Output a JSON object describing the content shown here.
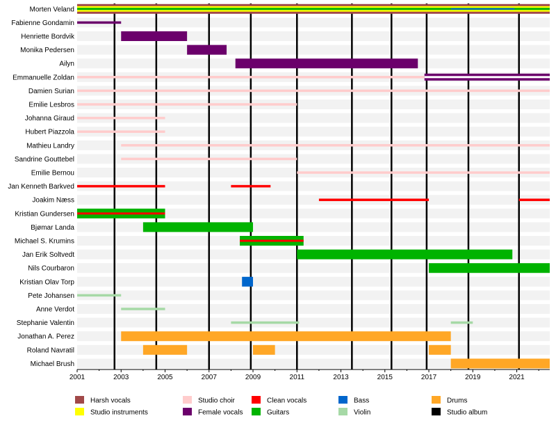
{
  "chart_data": {
    "type": "timeline",
    "title": "",
    "xlim": [
      2001,
      2022.5
    ],
    "x_ticks": [
      2001,
      2003,
      2005,
      2007,
      2009,
      2011,
      2013,
      2015,
      2017,
      2019,
      2021
    ],
    "album_years": [
      2002.7,
      2004.6,
      2007.0,
      2008.9,
      2011.0,
      2013.5,
      2015.3,
      2016.9,
      2018.8,
      2021.1
    ],
    "colors": {
      "harsh_vocals": "#a14949",
      "studio_instruments": "#ffff00",
      "studio_choir": "#ffcccc",
      "female_vocals": "#6b006b",
      "clean_vocals": "#ff0000",
      "guitars": "#00b300",
      "bass": "#0066cc",
      "violin": "#a6d9a6",
      "drums": "#ffa726",
      "studio_album": "#000000"
    },
    "legend": [
      {
        "key": "harsh_vocals",
        "label": "Harsh vocals"
      },
      {
        "key": "studio_instruments",
        "label": "Studio instruments"
      },
      {
        "key": "studio_choir",
        "label": "Studio choir"
      },
      {
        "key": "female_vocals",
        "label": "Female vocals"
      },
      {
        "key": "clean_vocals",
        "label": "Clean vocals"
      },
      {
        "key": "guitars",
        "label": "Guitars"
      },
      {
        "key": "bass",
        "label": "Bass"
      },
      {
        "key": "violin",
        "label": "Violin"
      },
      {
        "key": "drums",
        "label": "Drums"
      },
      {
        "key": "studio_album",
        "label": "Studio album"
      }
    ],
    "members": [
      {
        "name": "Morten Veland",
        "spans": [
          {
            "role": "harsh_vocals",
            "from": 2001,
            "to": 2022.5,
            "weight": "full"
          },
          {
            "role": "studio_instruments",
            "from": 2001,
            "to": 2022.5,
            "weight": "mid"
          },
          {
            "role": "guitars",
            "from": 2001,
            "to": 2022.5,
            "weight": "thin"
          },
          {
            "role": "bass",
            "from": 2018.0,
            "to": 2020.9,
            "weight": "hair"
          }
        ]
      },
      {
        "name": "Fabienne Gondamin",
        "spans": [
          {
            "role": "female_vocals",
            "from": 2001,
            "to": 2003.0,
            "weight": "line"
          }
        ]
      },
      {
        "name": "Henriette Bordvik",
        "spans": [
          {
            "role": "female_vocals",
            "from": 2003.0,
            "to": 2006.0,
            "weight": "full"
          }
        ]
      },
      {
        "name": "Monika Pedersen",
        "spans": [
          {
            "role": "female_vocals",
            "from": 2006.0,
            "to": 2007.8,
            "weight": "full"
          }
        ]
      },
      {
        "name": "Ailyn",
        "spans": [
          {
            "role": "female_vocals",
            "from": 2008.2,
            "to": 2016.5,
            "weight": "full"
          }
        ]
      },
      {
        "name": "Emmanuelle Zoldan",
        "spans": [
          {
            "role": "studio_choir",
            "from": 2001,
            "to": 2022.5,
            "weight": "line"
          },
          {
            "role": "female_vocals",
            "from": 2016.8,
            "to": 2022.5,
            "weight": "split"
          }
        ]
      },
      {
        "name": "Damien Surian",
        "spans": [
          {
            "role": "studio_choir",
            "from": 2001,
            "to": 2022.5,
            "weight": "line"
          }
        ]
      },
      {
        "name": "Emilie Lesbros",
        "spans": [
          {
            "role": "studio_choir",
            "from": 2001,
            "to": 2011.0,
            "weight": "line"
          }
        ]
      },
      {
        "name": "Johanna Giraud",
        "spans": [
          {
            "role": "studio_choir",
            "from": 2001,
            "to": 2005.0,
            "weight": "line"
          }
        ]
      },
      {
        "name": "Hubert Piazzola",
        "spans": [
          {
            "role": "studio_choir",
            "from": 2001,
            "to": 2005.0,
            "weight": "line"
          }
        ]
      },
      {
        "name": "Mathieu Landry",
        "spans": [
          {
            "role": "studio_choir",
            "from": 2003.0,
            "to": 2022.5,
            "weight": "line"
          }
        ]
      },
      {
        "name": "Sandrine Gouttebel",
        "spans": [
          {
            "role": "studio_choir",
            "from": 2003.0,
            "to": 2011.0,
            "weight": "line"
          }
        ]
      },
      {
        "name": "Emilie Bernou",
        "spans": [
          {
            "role": "studio_choir",
            "from": 2011.0,
            "to": 2022.5,
            "weight": "line"
          }
        ]
      },
      {
        "name": "Jan Kenneth Barkved",
        "spans": [
          {
            "role": "clean_vocals",
            "from": 2001,
            "to": 2005.0,
            "weight": "line"
          },
          {
            "role": "clean_vocals",
            "from": 2008.0,
            "to": 2009.8,
            "weight": "line"
          }
        ]
      },
      {
        "name": "Joakim Næss",
        "spans": [
          {
            "role": "clean_vocals",
            "from": 2012.0,
            "to": 2017.0,
            "weight": "line"
          },
          {
            "role": "clean_vocals",
            "from": 2021.1,
            "to": 2022.5,
            "weight": "line"
          }
        ]
      },
      {
        "name": "Kristian Gundersen",
        "spans": [
          {
            "role": "guitars",
            "from": 2001,
            "to": 2005.0,
            "weight": "full"
          },
          {
            "role": "clean_vocals",
            "from": 2001,
            "to": 2005.0,
            "weight": "center"
          }
        ]
      },
      {
        "name": "Bjømar Landa",
        "spans": [
          {
            "role": "guitars",
            "from": 2004.0,
            "to": 2009.0,
            "weight": "full"
          }
        ]
      },
      {
        "name": "Michael S. Krumins",
        "spans": [
          {
            "role": "guitars",
            "from": 2008.4,
            "to": 2011.3,
            "weight": "full"
          },
          {
            "role": "clean_vocals",
            "from": 2008.4,
            "to": 2011.3,
            "weight": "center"
          }
        ]
      },
      {
        "name": "Jan Erik Soltvedt",
        "spans": [
          {
            "role": "guitars",
            "from": 2011.0,
            "to": 2020.8,
            "weight": "full"
          }
        ]
      },
      {
        "name": "Nils Courbaron",
        "spans": [
          {
            "role": "guitars",
            "from": 2017.0,
            "to": 2022.5,
            "weight": "full"
          }
        ]
      },
      {
        "name": "Kristian Olav Torp",
        "spans": [
          {
            "role": "bass",
            "from": 2008.5,
            "to": 2009.0,
            "weight": "full"
          }
        ]
      },
      {
        "name": "Pete Johansen",
        "spans": [
          {
            "role": "violin",
            "from": 2001,
            "to": 2003.0,
            "weight": "line"
          }
        ]
      },
      {
        "name": "Anne Verdot",
        "spans": [
          {
            "role": "violin",
            "from": 2003.0,
            "to": 2005.0,
            "weight": "line"
          }
        ]
      },
      {
        "name": "Stephanie Valentin",
        "spans": [
          {
            "role": "violin",
            "from": 2008.0,
            "to": 2011.1,
            "weight": "line"
          },
          {
            "role": "violin",
            "from": 2018.0,
            "to": 2019.0,
            "weight": "line"
          }
        ]
      },
      {
        "name": "Jonathan A. Perez",
        "spans": [
          {
            "role": "drums",
            "from": 2003.0,
            "to": 2018.0,
            "weight": "full"
          }
        ]
      },
      {
        "name": "Roland Navratil",
        "spans": [
          {
            "role": "drums",
            "from": 2004.0,
            "to": 2006.0,
            "weight": "full"
          },
          {
            "role": "drums",
            "from": 2009.0,
            "to": 2010.0,
            "weight": "full"
          },
          {
            "role": "drums",
            "from": 2017.0,
            "to": 2018.0,
            "weight": "full"
          }
        ]
      },
      {
        "name": "Michael Brush",
        "spans": [
          {
            "role": "drums",
            "from": 2018.0,
            "to": 2022.5,
            "weight": "full"
          }
        ]
      }
    ]
  }
}
